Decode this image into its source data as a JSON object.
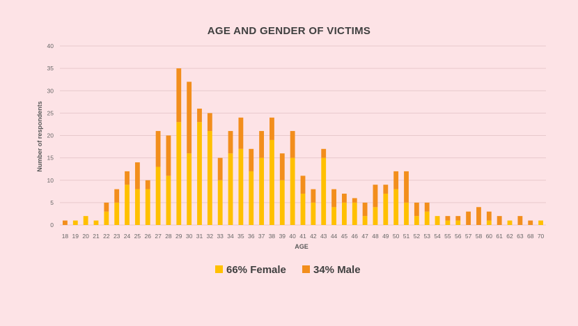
{
  "chart_data": {
    "type": "bar",
    "stacked": true,
    "title": "AGE AND GENDER OF VICTIMS",
    "xlabel": "AGE",
    "ylabel": "Number of respondents",
    "ylim": [
      0,
      40
    ],
    "yticks": [
      0,
      5,
      10,
      15,
      20,
      25,
      30,
      35,
      40
    ],
    "grid": true,
    "legend_position": "bottom",
    "categories": [
      "18",
      "19",
      "20",
      "21",
      "22",
      "23",
      "24",
      "25",
      "26",
      "27",
      "28",
      "29",
      "30",
      "31",
      "32",
      "33",
      "34",
      "35",
      "36",
      "37",
      "38",
      "39",
      "40",
      "41",
      "42",
      "43",
      "44",
      "45",
      "46",
      "47",
      "48",
      "49",
      "50",
      "51",
      "52",
      "53",
      "54",
      "55",
      "56",
      "57",
      "58",
      "60",
      "61",
      "62",
      "63",
      "68",
      "70"
    ],
    "series": [
      {
        "name": "66% Female",
        "color": "#ffc000",
        "values": [
          0,
          1,
          2,
          1,
          3,
          5,
          9,
          8,
          8,
          13,
          11,
          23,
          16,
          23,
          21,
          10,
          16,
          17,
          12,
          15,
          19,
          10,
          15,
          7,
          5,
          15,
          4,
          5,
          5,
          2,
          4,
          7,
          8,
          5,
          2,
          3,
          2,
          1,
          1,
          0,
          0,
          1,
          0,
          1,
          0,
          0,
          1
        ]
      },
      {
        "name": "34% Male",
        "color": "#f28e1c",
        "values": [
          1,
          0,
          0,
          0,
          2,
          3,
          3,
          6,
          2,
          8,
          9,
          12,
          16,
          3,
          4,
          5,
          5,
          7,
          5,
          6,
          5,
          6,
          6,
          4,
          3,
          2,
          4,
          2,
          1,
          3,
          5,
          2,
          4,
          7,
          3,
          2,
          0,
          1,
          1,
          3,
          4,
          2,
          2,
          0,
          2,
          1,
          0
        ]
      }
    ]
  }
}
